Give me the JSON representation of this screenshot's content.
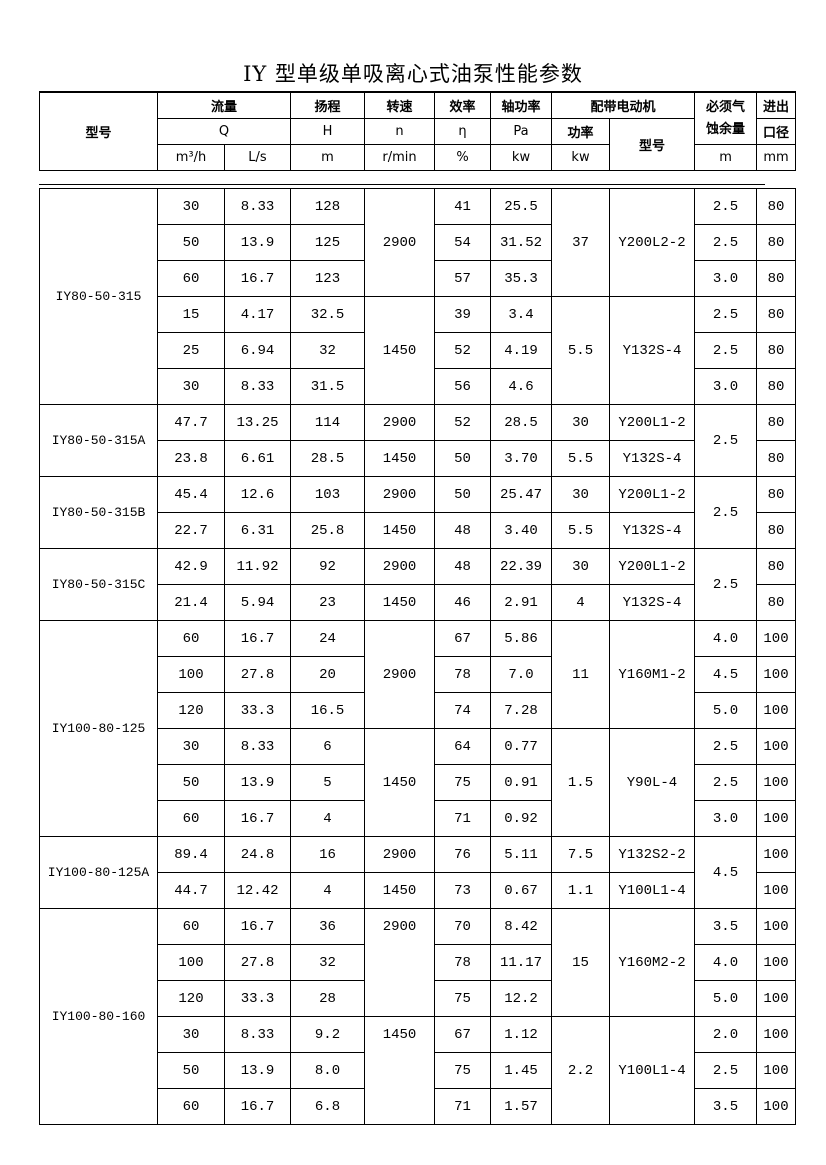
{
  "title": "IY 型单级单吸离心式油泵性能参数",
  "header": {
    "model": "型号",
    "flow": "流量",
    "flow_sym": "Q",
    "flow_unit1": "m³/h",
    "flow_unit2": "L/s",
    "head": "扬程",
    "head_sym": "H",
    "head_unit": "m",
    "speed": "转速",
    "speed_sym": "n",
    "speed_unit": "r/min",
    "eff": "效率",
    "eff_sym": "η",
    "eff_unit": "%",
    "power": "轴功率",
    "power_sym": "Pa",
    "power_unit": "kw",
    "motor": "配带电动机",
    "motor_kw": "功率",
    "motor_kw_unit": "kw",
    "motor_model": "型号",
    "npsh_1": "必须气",
    "npsh_2": "蚀余量",
    "npsh_unit": "m",
    "bore_1": "进出",
    "bore_2": "口径",
    "bore_unit": "mm"
  },
  "groups": [
    {
      "model": "IY80-50-315",
      "rows": [
        [
          "30",
          "8.33",
          "128",
          "2900",
          "41",
          "25.5",
          "37",
          "Y200L2-2",
          "2.5",
          "80"
        ],
        [
          "50",
          "13.9",
          "125",
          null,
          "54",
          "31.52",
          null,
          null,
          "2.5",
          "80"
        ],
        [
          "60",
          "16.7",
          "123",
          null,
          "57",
          "35.3",
          null,
          null,
          "3.0",
          "80"
        ],
        [
          "15",
          "4.17",
          "32.5",
          "1450",
          "39",
          "3.4",
          "5.5",
          "Y132S-4",
          "2.5",
          "80"
        ],
        [
          "25",
          "6.94",
          "32",
          null,
          "52",
          "4.19",
          null,
          null,
          "2.5",
          "80"
        ],
        [
          "30",
          "8.33",
          "31.5",
          null,
          "56",
          "4.6",
          null,
          null,
          "3.0",
          "80"
        ]
      ]
    },
    {
      "model": "IY80-50-315A",
      "rows": [
        [
          "47.7",
          "13.25",
          "114",
          "2900",
          "52",
          "28.5",
          "30",
          "Y200L1-2",
          "2.5",
          "80"
        ],
        [
          "23.8",
          "6.61",
          "28.5",
          "1450",
          "50",
          "3.70",
          "5.5",
          "Y132S-4",
          null,
          "80"
        ]
      ]
    },
    {
      "model": "IY80-50-315B",
      "rows": [
        [
          "45.4",
          "12.6",
          "103",
          "2900",
          "50",
          "25.47",
          "30",
          "Y200L1-2",
          "2.5",
          "80"
        ],
        [
          "22.7",
          "6.31",
          "25.8",
          "1450",
          "48",
          "3.40",
          "5.5",
          "Y132S-4",
          null,
          "80"
        ]
      ]
    },
    {
      "model": "IY80-50-315C",
      "rows": [
        [
          "42.9",
          "11.92",
          "92",
          "2900",
          "48",
          "22.39",
          "30",
          "Y200L1-2",
          "2.5",
          "80"
        ],
        [
          "21.4",
          "5.94",
          "23",
          "1450",
          "46",
          "2.91",
          "4",
          "Y132S-4",
          null,
          "80"
        ]
      ]
    },
    {
      "model": "IY100-80-125",
      "rows": [
        [
          "60",
          "16.7",
          "24",
          "2900",
          "67",
          "5.86",
          "11",
          "Y160M1-2",
          "4.0",
          "100"
        ],
        [
          "100",
          "27.8",
          "20",
          null,
          "78",
          "7.0",
          null,
          null,
          "4.5",
          "100"
        ],
        [
          "120",
          "33.3",
          "16.5",
          null,
          "74",
          "7.28",
          null,
          null,
          "5.0",
          "100"
        ],
        [
          "30",
          "8.33",
          "6",
          "1450",
          "64",
          "0.77",
          "1.5",
          "Y90L-4",
          "2.5",
          "100"
        ],
        [
          "50",
          "13.9",
          "5",
          null,
          "75",
          "0.91",
          null,
          null,
          "2.5",
          "100"
        ],
        [
          "60",
          "16.7",
          "4",
          null,
          "71",
          "0.92",
          null,
          null,
          "3.0",
          "100"
        ]
      ]
    },
    {
      "model": "IY100-80-125A",
      "rows": [
        [
          "89.4",
          "24.8",
          "16",
          "2900",
          "76",
          "5.11",
          "7.5",
          "Y132S2-2",
          "4.5",
          "100"
        ],
        [
          "44.7",
          "12.42",
          "4",
          "1450",
          "73",
          "0.67",
          "1.1",
          "Y100L1-4",
          null,
          "100"
        ]
      ]
    },
    {
      "model": "IY100-80-160",
      "rows": [
        [
          "60",
          "16.7",
          "36",
          "2900",
          "70",
          "8.42",
          "15",
          "Y160M2-2",
          "3.5",
          "100"
        ],
        [
          "100",
          "27.8",
          "32",
          "",
          "78",
          "11.17",
          null,
          null,
          "4.0",
          "100"
        ],
        [
          "120",
          "33.3",
          "28",
          "",
          "75",
          "12.2",
          null,
          null,
          "5.0",
          "100"
        ],
        [
          "30",
          "8.33",
          "9.2",
          "1450",
          "67",
          "1.12",
          "2.2",
          "Y100L1-4",
          "2.0",
          "100"
        ],
        [
          "50",
          "13.9",
          "8.0",
          "",
          "75",
          "1.45",
          null,
          null,
          "2.5",
          "100"
        ],
        [
          "60",
          "16.7",
          "6.8",
          "",
          "71",
          "1.57",
          null,
          null,
          "3.5",
          "100"
        ]
      ]
    }
  ]
}
